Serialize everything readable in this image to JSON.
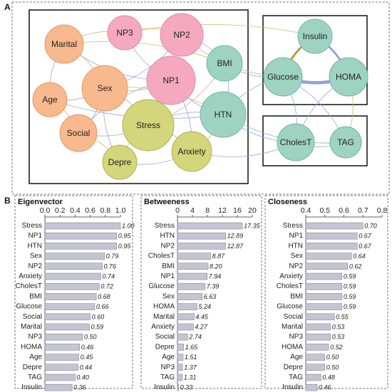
{
  "panel_a": {
    "letter": "A",
    "nodes": [
      {
        "id": "Marital",
        "label": "Marital",
        "fill": "#F8B98E",
        "stroke": "#E09A66"
      },
      {
        "id": "NP3",
        "label": "NP3",
        "fill": "#F5A9BE",
        "stroke": "#DB8AA2"
      },
      {
        "id": "NP2",
        "label": "NP2",
        "fill": "#F5A9BE",
        "stroke": "#DB8AA2"
      },
      {
        "id": "BMI",
        "label": "BMI",
        "fill": "#9ED3C2",
        "stroke": "#72B5A2"
      },
      {
        "id": "Age",
        "label": "Age",
        "fill": "#F8B98E",
        "stroke": "#E09A66"
      },
      {
        "id": "Sex",
        "label": "Sex",
        "fill": "#F8B98E",
        "stroke": "#E09A66"
      },
      {
        "id": "NP1",
        "label": "NP1",
        "fill": "#F5A9BE",
        "stroke": "#DB8AA2"
      },
      {
        "id": "HTN",
        "label": "HTN",
        "fill": "#9ED3C2",
        "stroke": "#72B5A2"
      },
      {
        "id": "Social",
        "label": "Social",
        "fill": "#F8B98E",
        "stroke": "#E09A66"
      },
      {
        "id": "Stress",
        "label": "Stress",
        "fill": "#D3D67A",
        "stroke": "#AEB255"
      },
      {
        "id": "Depre",
        "label": "Depre",
        "fill": "#D3D67A",
        "stroke": "#AEB255"
      },
      {
        "id": "Anxiety",
        "label": "Anxiety",
        "fill": "#D3D67A",
        "stroke": "#AEB255"
      },
      {
        "id": "Insulin",
        "label": "Insulin",
        "fill": "#9ED3C2",
        "stroke": "#72B5A2"
      },
      {
        "id": "Glucose",
        "label": "Glucose",
        "fill": "#9ED3C2",
        "stroke": "#72B5A2"
      },
      {
        "id": "HOMA",
        "label": "HOMA",
        "fill": "#9ED3C2",
        "stroke": "#72B5A2"
      },
      {
        "id": "CholesT",
        "label": "CholesT",
        "fill": "#9ED3C2",
        "stroke": "#72B5A2"
      },
      {
        "id": "TAG",
        "label": "TAG",
        "fill": "#9ED3C2",
        "stroke": "#72B5A2"
      }
    ],
    "edges": [
      {
        "s": "Glucose",
        "t": "HOMA",
        "color": "#8FA3D8",
        "weight": "strong"
      },
      {
        "s": "Insulin",
        "t": "HOMA",
        "color": "#8FA3D8",
        "weight": "medium"
      },
      {
        "s": "Insulin",
        "t": "Glucose",
        "color": "#B89A3E",
        "weight": "medium"
      },
      {
        "s": "Marital",
        "t": "Sex",
        "color": "#C9B66A",
        "weight": "thin"
      },
      {
        "s": "Marital",
        "t": "Age",
        "color": "#8FA3D8",
        "weight": "thin"
      },
      {
        "s": "Marital",
        "t": "NP3",
        "color": "#C9B66A",
        "weight": "thin"
      },
      {
        "s": "Marital",
        "t": "NP1",
        "color": "#8FA3D8",
        "weight": "thin"
      },
      {
        "s": "Marital",
        "t": "BMI",
        "color": "#C9B66A",
        "weight": "thin"
      },
      {
        "s": "Age",
        "t": "Sex",
        "color": "#8FA3D8",
        "weight": "thin"
      },
      {
        "s": "Age",
        "t": "Social",
        "color": "#C9B66A",
        "weight": "thin"
      },
      {
        "s": "Age",
        "t": "HTN",
        "color": "#8FA3D8",
        "weight": "thin"
      },
      {
        "s": "Sex",
        "t": "Social",
        "color": "#8FA3D8",
        "weight": "thin"
      },
      {
        "s": "Sex",
        "t": "NP1",
        "color": "#C9B66A",
        "weight": "thin"
      },
      {
        "s": "Sex",
        "t": "Stress",
        "color": "#8FA3D8",
        "weight": "thin"
      },
      {
        "s": "Sex",
        "t": "NP2",
        "color": "#8FA3D8",
        "weight": "thin"
      },
      {
        "s": "Sex",
        "t": "HTN",
        "color": "#C9B66A",
        "weight": "thin"
      },
      {
        "s": "Sex",
        "t": "Depre",
        "color": "#8FA3D8",
        "weight": "thin"
      },
      {
        "s": "NP3",
        "t": "NP2",
        "color": "#C9B66A",
        "weight": "thin"
      },
      {
        "s": "NP3",
        "t": "NP1",
        "color": "#8FA3D8",
        "weight": "thin"
      },
      {
        "s": "NP3",
        "t": "Insulin",
        "color": "#C9B66A",
        "weight": "thin"
      },
      {
        "s": "NP2",
        "t": "NP1",
        "color": "#C9B66A",
        "weight": "thin"
      },
      {
        "s": "NP2",
        "t": "BMI",
        "color": "#8FA3D8",
        "weight": "thin"
      },
      {
        "s": "NP2",
        "t": "Glucose",
        "color": "#C9B66A",
        "weight": "thin"
      },
      {
        "s": "NP1",
        "t": "Stress",
        "color": "#C9B66A",
        "weight": "thin"
      },
      {
        "s": "NP1",
        "t": "HTN",
        "color": "#8FA3D8",
        "weight": "thin"
      },
      {
        "s": "NP1",
        "t": "Anxiety",
        "color": "#8FA3D8",
        "weight": "thin"
      },
      {
        "s": "NP1",
        "t": "Social",
        "color": "#8FA3D8",
        "weight": "thin"
      },
      {
        "s": "BMI",
        "t": "HTN",
        "color": "#8FA3D8",
        "weight": "thin"
      },
      {
        "s": "BMI",
        "t": "Glucose",
        "color": "#8FA3D8",
        "weight": "thin"
      },
      {
        "s": "BMI",
        "t": "Stress",
        "color": "#C9B66A",
        "weight": "thin"
      },
      {
        "s": "HTN",
        "t": "Stress",
        "color": "#8FA3D8",
        "weight": "thin"
      },
      {
        "s": "HTN",
        "t": "Anxiety",
        "color": "#C9B66A",
        "weight": "thin"
      },
      {
        "s": "HTN",
        "t": "CholesT",
        "color": "#8FA3D8",
        "weight": "thin"
      },
      {
        "s": "HTN",
        "t": "Glucose",
        "color": "#8FA3D8",
        "weight": "thin"
      },
      {
        "s": "HTN",
        "t": "TAG",
        "color": "#8FA3D8",
        "weight": "thin"
      },
      {
        "s": "Stress",
        "t": "Anxiety",
        "color": "#8FA3D8",
        "weight": "thin"
      },
      {
        "s": "Stress",
        "t": "Depre",
        "color": "#C9B66A",
        "weight": "thin"
      },
      {
        "s": "Stress",
        "t": "Social",
        "color": "#8FA3D8",
        "weight": "thin"
      },
      {
        "s": "Depre",
        "t": "Anxiety",
        "color": "#8FA3D8",
        "weight": "thin"
      },
      {
        "s": "Social",
        "t": "Depre",
        "color": "#C9B66A",
        "weight": "thin"
      },
      {
        "s": "Anxiety",
        "t": "CholesT",
        "color": "#8FA3D8",
        "weight": "thin"
      },
      {
        "s": "Glucose",
        "t": "CholesT",
        "color": "#8FA3D8",
        "weight": "thin"
      },
      {
        "s": "HOMA",
        "t": "CholesT",
        "color": "#8FA3D8",
        "weight": "thin"
      },
      {
        "s": "HOMA",
        "t": "TAG",
        "color": "#C9B66A",
        "weight": "thin"
      },
      {
        "s": "CholesT",
        "t": "TAG",
        "color": "#8FA3D8",
        "weight": "thin"
      },
      {
        "s": "Glucose",
        "t": "TAG",
        "color": "#8FA3D8",
        "weight": "thin"
      }
    ]
  },
  "panel_b": {
    "letter": "B",
    "bar_color": "#C4C4D2",
    "chart_data": [
      {
        "type": "bar",
        "orientation": "horizontal",
        "title": "Eigenvector",
        "xlim": [
          0,
          1.0
        ],
        "xticks": [
          "0.0",
          "0.2",
          "0.4",
          "0.6",
          "0.8",
          "1.0"
        ],
        "xtick_values": [
          0,
          0.2,
          0.4,
          0.6,
          0.8,
          1.0
        ],
        "categories": [
          "Stress",
          "NP1",
          "HTN",
          "Sex",
          "NP2",
          "Anxiety",
          "CholesT",
          "BMI",
          "Glucose",
          "Social",
          "Marital",
          "NP3",
          "HOMA",
          "Age",
          "Depre",
          "TAG",
          "Insulin"
        ],
        "values": [
          1.0,
          0.95,
          0.95,
          0.79,
          0.76,
          0.74,
          0.72,
          0.68,
          0.66,
          0.6,
          0.59,
          0.5,
          0.46,
          0.45,
          0.44,
          0.4,
          0.36
        ],
        "labels": [
          "1.00",
          "0.95",
          "0.95",
          "0.79",
          "0.76",
          "0.74",
          "0.72",
          "0.68",
          "0.66",
          "0.60",
          "0.59",
          "0.50",
          "0.46",
          "0.45",
          "0.44",
          "0.40",
          "0.36"
        ]
      },
      {
        "type": "bar",
        "orientation": "horizontal",
        "title": "Betweeness",
        "xlim": [
          0,
          20
        ],
        "xticks": [
          "0",
          "4",
          "8",
          "12",
          "16",
          "20"
        ],
        "xtick_values": [
          0,
          4,
          8,
          12,
          16,
          20
        ],
        "categories": [
          "Stress",
          "HTN",
          "NP2",
          "CholesT",
          "BMI",
          "NP1",
          "Glucose",
          "Sex",
          "HOMA",
          "Marital",
          "Anxiety",
          "Social",
          "Depre",
          "Age",
          "NP3",
          "TAG",
          "Insulin"
        ],
        "values": [
          17.35,
          12.89,
          12.87,
          8.87,
          8.2,
          7.94,
          7.39,
          6.63,
          5.24,
          4.45,
          4.27,
          2.74,
          1.65,
          1.51,
          1.37,
          1.31,
          0.33
        ],
        "labels": [
          "17.35",
          "12.89",
          "12.87",
          "8.87",
          "8.20",
          "7.94",
          "7.39",
          "6.63",
          "5.24",
          "4.45",
          "4.27",
          "2.74",
          "1.65",
          "1.51",
          "1.37",
          "1.31",
          "0.33"
        ]
      },
      {
        "type": "bar",
        "orientation": "horizontal",
        "title": "Closeness",
        "xlim": [
          0.4,
          0.8
        ],
        "xticks": [
          "0.4",
          "0.5",
          "0.6",
          "0.7",
          "0.8"
        ],
        "xtick_values": [
          0.4,
          0.5,
          0.6,
          0.7,
          0.8
        ],
        "categories": [
          "Stress",
          "NP1",
          "HTN",
          "Sex",
          "NP2",
          "Anxiety",
          "CholesT",
          "BMI",
          "Glucose",
          "Social",
          "Marital",
          "NP3",
          "HOMA",
          "Age",
          "Depre",
          "TAG",
          "Insulin"
        ],
        "values": [
          0.7,
          0.67,
          0.67,
          0.64,
          0.62,
          0.59,
          0.59,
          0.59,
          0.59,
          0.55,
          0.53,
          0.53,
          0.52,
          0.5,
          0.5,
          0.48,
          0.46
        ],
        "labels": [
          "0.70",
          "0.67",
          "0.67",
          "0.64",
          "0.62",
          "0.59",
          "0.59",
          "0.59",
          "0.59",
          "0.55",
          "0.53",
          "0.53",
          "0.52",
          "0.50",
          "0.50",
          "0.48",
          "0.46"
        ]
      }
    ]
  }
}
